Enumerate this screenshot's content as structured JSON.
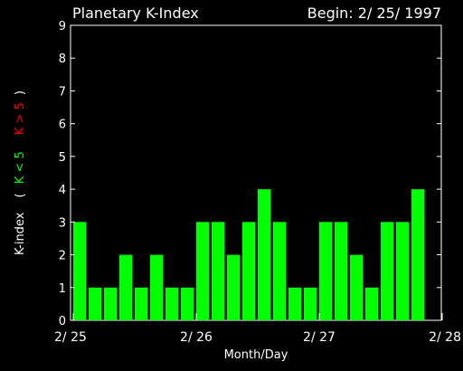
{
  "chart_data": {
    "type": "bar",
    "title": "Planetary K-Index",
    "begin_label": "Begin: 2/ 25/ 1997",
    "xlabel": "Month/Day",
    "ylabel": {
      "prefix": "K-index",
      "open": "(",
      "low": "K < 5",
      "high": "K > 5",
      "close": ")"
    },
    "ylim": [
      0,
      9
    ],
    "yticks": [
      "0",
      "1",
      "2",
      "3",
      "4",
      "5",
      "6",
      "7",
      "8",
      "9"
    ],
    "xticks": [
      "2/ 25",
      "2/ 26",
      "2/ 27",
      "2/ 28"
    ],
    "values": [
      3,
      1,
      1,
      2,
      1,
      2,
      1,
      1,
      3,
      3,
      2,
      3,
      4,
      3,
      1,
      1,
      3,
      3,
      2,
      1,
      3,
      3,
      4
    ],
    "grid": false,
    "colors": {
      "low": "#00ff00",
      "high": "#ff0000",
      "axis": "#ffffff",
      "background": "#000000"
    }
  }
}
